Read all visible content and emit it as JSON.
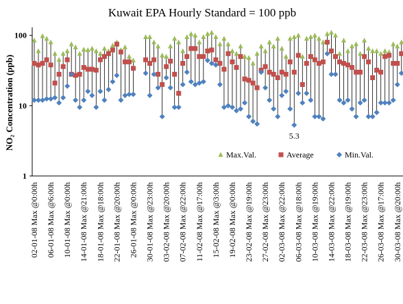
{
  "chart_data": {
    "type": "hilo",
    "title": "Kuwait EPA Hourly Standard = 100 ppb",
    "y_label": "NO₂ Concentration (ppb)",
    "log_scale": true,
    "ylim": [
      1,
      130
    ],
    "yticks": [
      1,
      10,
      100
    ],
    "categories": [
      "02-01-08 Max @0:00h",
      null,
      null,
      null,
      "06-01-08 Max @6:00h",
      null,
      null,
      null,
      "10-01-08 Max @0:00h",
      null,
      null,
      null,
      "14-01-08 Max @21:00h",
      null,
      null,
      null,
      "18-01-08 Max @18:00h",
      null,
      null,
      null,
      "22-01-08 Max @20:00h",
      null,
      null,
      null,
      "26-01-08 Max @0:00h",
      null,
      null,
      null,
      "30-01-08 Max @23:00h",
      null,
      null,
      null,
      "03-02-08 Max @20:00h",
      null,
      null,
      null,
      "07-02-08 Max @22:00h",
      null,
      null,
      null,
      "11-02-08 Max @17:00h",
      null,
      null,
      null,
      "15-02-08 Max @3:00h",
      null,
      null,
      null,
      "19-02-08 Max @0:00h",
      null,
      null,
      null,
      "23-02-08 Max @19:00h",
      null,
      null,
      null,
      "27-02-08 Max @23:00h",
      null,
      null,
      null,
      "02-03-08 Max @22:00h",
      null,
      null,
      null,
      "06-03-08 Max @18:00h",
      null,
      null,
      null,
      "10-03-08 Max @19:00h",
      null,
      null,
      null,
      "14-03-08 Max @22:00h",
      null,
      null,
      null,
      "18-03-08 Max @19:00h",
      null,
      null,
      null,
      "22-03-08 Max @23:00h",
      null,
      null,
      null,
      "26-03-08 Max @17:00h",
      null,
      null,
      null,
      "30-03-08 Max @20:00h",
      null
    ],
    "series": [
      {
        "name": "Max.Val.",
        "color": "#9bbb59",
        "marker": "triangle",
        "values": [
          85,
          60,
          98,
          90,
          80,
          55,
          45,
          55,
          60,
          75,
          68,
          55,
          63,
          62,
          65,
          60,
          55,
          65,
          60,
          72,
          80,
          62,
          68,
          50,
          44,
          null,
          null,
          95,
          95,
          80,
          70,
          52,
          50,
          70,
          90,
          80,
          60,
          95,
          105,
          100,
          80,
          95,
          105,
          110,
          95,
          75,
          90,
          75,
          60,
          55,
          70,
          50,
          48,
          40,
          55,
          70,
          60,
          80,
          70,
          90,
          65,
          50,
          90,
          95,
          100,
          50,
          90,
          95,
          100,
          90,
          80,
          105,
          110,
          100,
          55,
          85,
          60,
          70,
          75,
          55,
          85,
          65,
          60,
          60,
          55,
          60,
          58,
          75,
          70,
          80
        ]
      },
      {
        "name": "Average",
        "color": "#c0504d",
        "marker": "square",
        "values": [
          40,
          38,
          40,
          45,
          38,
          21,
          28,
          36,
          45,
          28,
          27,
          28,
          35,
          33,
          33,
          32,
          45,
          50,
          55,
          62,
          75,
          58,
          42,
          42,
          34,
          null,
          null,
          45,
          40,
          45,
          28,
          20,
          36,
          43,
          28,
          15,
          40,
          50,
          65,
          65,
          50,
          50,
          60,
          62,
          45,
          40,
          33,
          55,
          42,
          35,
          50,
          24,
          23,
          21,
          18,
          32,
          36,
          30,
          28,
          25,
          30,
          28,
          42,
          30,
          52,
          20,
          40,
          50,
          45,
          40,
          42,
          80,
          60,
          50,
          42,
          40,
          38,
          35,
          30,
          30,
          50,
          42,
          25,
          32,
          30,
          50,
          52,
          40,
          40,
          55
        ]
      },
      {
        "name": "Min.Val.",
        "color": "#4f81bd",
        "marker": "diamond",
        "values": [
          12,
          12,
          12,
          12.5,
          12.5,
          13,
          11,
          13,
          19,
          28,
          12,
          9.5,
          12,
          16,
          14,
          9.5,
          16,
          12,
          17,
          22,
          27,
          12,
          14,
          14.5,
          14.5,
          null,
          null,
          29,
          14,
          28,
          18,
          7,
          25,
          18,
          9.5,
          9.5,
          20,
          30,
          22,
          20,
          21,
          22,
          44,
          40,
          38,
          20,
          9.5,
          10,
          9.5,
          8.5,
          9,
          11,
          7,
          6,
          5.5,
          30,
          18,
          12,
          9,
          7,
          14,
          16,
          9,
          5.3,
          15,
          11,
          15,
          12,
          7,
          7,
          6.5,
          55,
          28,
          28,
          12,
          11,
          12,
          9,
          7,
          11,
          12,
          7,
          7,
          8,
          11,
          11,
          11,
          12,
          20,
          29
        ]
      }
    ],
    "annotations": [
      {
        "text": "5.3"
      }
    ]
  }
}
